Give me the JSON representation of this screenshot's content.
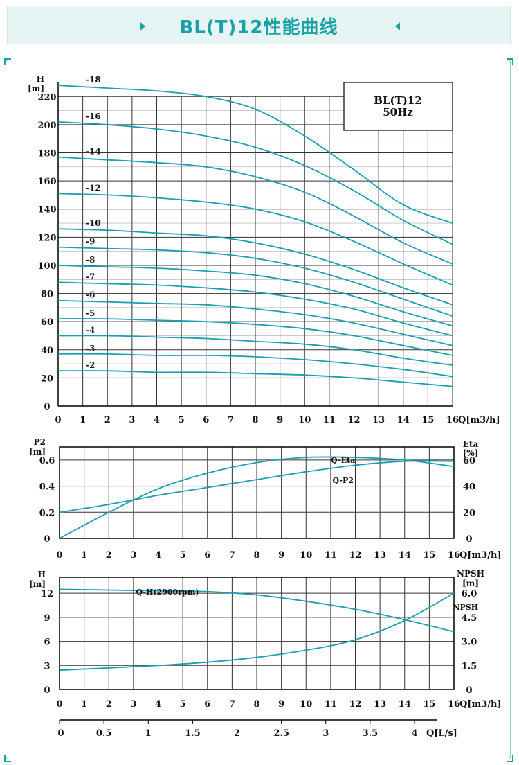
{
  "header": {
    "title": "BL(T)12性能曲线"
  },
  "colors": {
    "accent": "#17a3a6",
    "curve": "#1a9fb0",
    "grid": "#333333",
    "banner_bg": "#e6f4f4"
  },
  "chart_data": [
    {
      "type": "line",
      "title": "",
      "ylabel_top": "H",
      "ylabel_unit": "[m]",
      "xlabel": "Q[m3/h]",
      "xlim": [
        0,
        16
      ],
      "ylim": [
        0,
        230
      ],
      "x_ticks": [
        0,
        1,
        2,
        3,
        4,
        5,
        6,
        7,
        8,
        9,
        10,
        11,
        12,
        13,
        14,
        15,
        16
      ],
      "y_ticks": [
        0,
        20,
        40,
        60,
        80,
        100,
        120,
        140,
        160,
        180,
        200,
        220
      ],
      "legend_box": [
        "BL(T)12",
        "50Hz"
      ],
      "series": [
        {
          "name": "-18",
          "x": [
            0,
            2,
            4,
            6,
            8,
            10,
            12,
            14,
            16
          ],
          "values": [
            228,
            226,
            224,
            220,
            211,
            192,
            168,
            143,
            130
          ]
        },
        {
          "name": "-16",
          "x": [
            0,
            2,
            4,
            6,
            8,
            10,
            12,
            14,
            16
          ],
          "values": [
            202,
            200,
            197,
            192,
            184,
            171,
            153,
            132,
            115
          ]
        },
        {
          "name": "-14",
          "x": [
            0,
            2,
            4,
            6,
            8,
            10,
            12,
            14,
            16
          ],
          "values": [
            177,
            175,
            173,
            170,
            163,
            152,
            135,
            116,
            101
          ]
        },
        {
          "name": "-12",
          "x": [
            0,
            2,
            4,
            6,
            8,
            10,
            12,
            14,
            16
          ],
          "values": [
            151,
            150,
            148,
            145,
            140,
            131,
            117,
            101,
            86
          ]
        },
        {
          "name": "-10",
          "x": [
            0,
            2,
            4,
            6,
            8,
            10,
            12,
            14,
            16
          ],
          "values": [
            126,
            125,
            123,
            121,
            116,
            108,
            97,
            84,
            72
          ]
        },
        {
          "name": "-9",
          "x": [
            0,
            2,
            4,
            6,
            8,
            10,
            12,
            14,
            16
          ],
          "values": [
            113,
            112,
            111,
            109,
            105,
            98,
            88,
            76,
            64
          ]
        },
        {
          "name": "-8",
          "x": [
            0,
            2,
            4,
            6,
            8,
            10,
            12,
            14,
            16
          ],
          "values": [
            100,
            99,
            98,
            96,
            93,
            87,
            78,
            67,
            57
          ]
        },
        {
          "name": "-7",
          "x": [
            0,
            2,
            4,
            6,
            8,
            10,
            12,
            14,
            16
          ],
          "values": [
            88,
            87,
            86,
            84,
            81,
            76,
            69,
            59,
            50
          ]
        },
        {
          "name": "-6",
          "x": [
            0,
            2,
            4,
            6,
            8,
            10,
            12,
            14,
            16
          ],
          "values": [
            75,
            74,
            73,
            72,
            69,
            65,
            59,
            51,
            43
          ]
        },
        {
          "name": "-5",
          "x": [
            0,
            2,
            4,
            6,
            8,
            10,
            12,
            14,
            16
          ],
          "values": [
            62,
            62,
            61,
            60,
            58,
            55,
            50,
            43,
            36
          ]
        },
        {
          "name": "-4",
          "x": [
            0,
            2,
            4,
            6,
            8,
            10,
            12,
            14,
            16
          ],
          "values": [
            50,
            50,
            49,
            48,
            46,
            44,
            40,
            34,
            29
          ]
        },
        {
          "name": "-3",
          "x": [
            0,
            2,
            4,
            6,
            8,
            10,
            12,
            14,
            16
          ],
          "values": [
            37,
            37,
            36,
            36,
            35,
            33,
            30,
            26,
            21
          ]
        },
        {
          "name": "-2",
          "x": [
            0,
            2,
            4,
            6,
            8,
            10,
            12,
            14,
            16
          ],
          "values": [
            25,
            25,
            24,
            24,
            23,
            22,
            20,
            17,
            14
          ]
        }
      ]
    },
    {
      "type": "line",
      "title": "",
      "ylabel_left": "P2",
      "ylabel_left_unit": "[m]",
      "ylabel_right": "Eta",
      "ylabel_right_unit": "[%]",
      "xlabel": "Q[m3/h]",
      "xlim": [
        0,
        16
      ],
      "ylim_left": [
        0,
        0.7
      ],
      "ylim_right": [
        0,
        70
      ],
      "x_ticks": [
        0,
        1,
        2,
        3,
        4,
        5,
        6,
        7,
        8,
        9,
        10,
        11,
        12,
        13,
        14,
        15,
        16
      ],
      "y_ticks_left": [
        "0",
        "0.2",
        "0.4",
        "0.6"
      ],
      "y_ticks_right": [
        "0",
        "20",
        "40",
        "60"
      ],
      "series": [
        {
          "name": "Q-Eta",
          "axis": "right",
          "x": [
            0,
            2,
            4,
            6,
            8,
            10,
            12,
            14,
            16
          ],
          "values": [
            0,
            20,
            38,
            50,
            58,
            62,
            62,
            60,
            55
          ]
        },
        {
          "name": "Q-P2",
          "axis": "left",
          "x": [
            0,
            2,
            4,
            6,
            8,
            10,
            12,
            14,
            16
          ],
          "values": [
            0.2,
            0.26,
            0.33,
            0.39,
            0.45,
            0.51,
            0.56,
            0.59,
            0.59
          ]
        }
      ]
    },
    {
      "type": "line",
      "title": "",
      "ylabel_left": "H",
      "ylabel_left_unit": "[m]",
      "ylabel_right": "NPSH",
      "ylabel_right_unit": "[m]",
      "xlabel": "Q[m3/h]",
      "xlim": [
        0,
        16
      ],
      "ylim_left": [
        0,
        14
      ],
      "ylim_right": [
        0,
        7
      ],
      "x_ticks": [
        0,
        1,
        2,
        3,
        4,
        5,
        6,
        7,
        8,
        9,
        10,
        11,
        12,
        13,
        14,
        15,
        16
      ],
      "y_ticks_left": [
        "0",
        "3",
        "6",
        "9",
        "12"
      ],
      "y_ticks_right": [
        "0",
        "1.5",
        "3.0",
        "4.5",
        "6.0"
      ],
      "series": [
        {
          "name": "Q-H(2900rpm)",
          "axis": "left",
          "x": [
            0,
            2,
            4,
            6,
            8,
            10,
            12,
            14,
            16
          ],
          "values": [
            12.5,
            12.4,
            12.3,
            12.2,
            11.8,
            11.0,
            10.0,
            8.7,
            7.2
          ]
        },
        {
          "name": "NPSH",
          "axis": "right",
          "x": [
            0,
            2,
            4,
            6,
            8,
            10,
            12,
            14,
            16
          ],
          "values": [
            1.2,
            1.35,
            1.5,
            1.7,
            2.0,
            2.45,
            3.1,
            4.3,
            6.0
          ]
        }
      ],
      "secondary_axis": {
        "label": "Q[L/s]",
        "ticks": [
          "0",
          "0.5",
          "1",
          "1.5",
          "2",
          "2.5",
          "3",
          "3.5",
          "4"
        ]
      }
    }
  ]
}
